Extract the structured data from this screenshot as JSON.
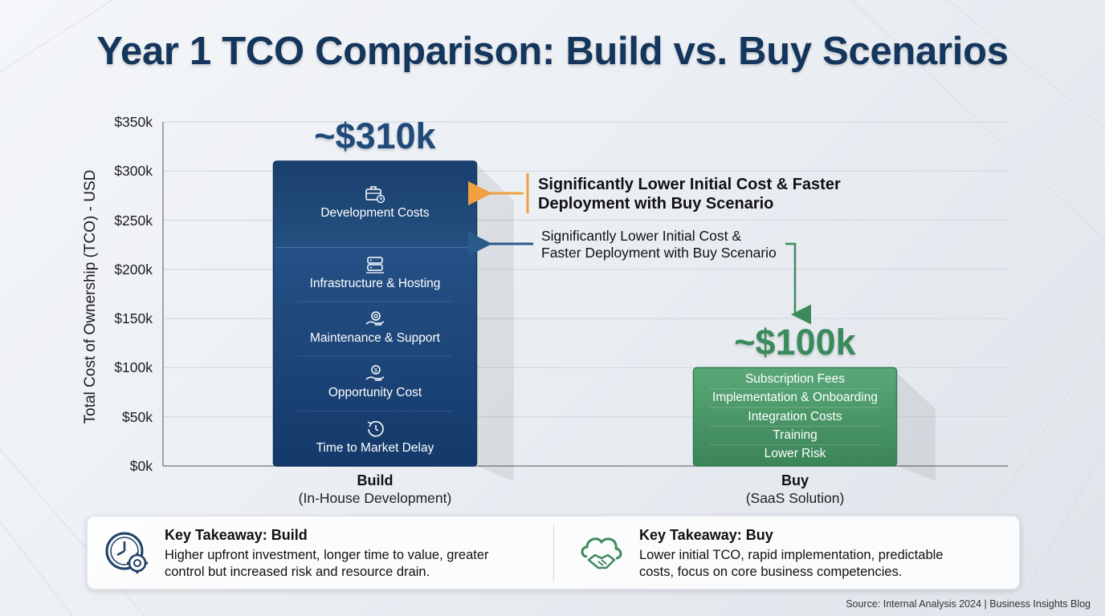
{
  "colors": {
    "title": "#14365c",
    "build_bar": "#1d4677",
    "build_bar_light": "#2f5f95",
    "buy_bar": "#3f8f5f",
    "build_total": "#1f4a7a",
    "buy_total": "#3a8a5c",
    "arrow_orange": "#f0a040",
    "arrow_blue": "#2a5a8c",
    "arrow_green": "#3f8a5c"
  },
  "chart_data": {
    "type": "bar",
    "title": "Year 1 TCO Comparison: Build vs. Buy Scenarios",
    "ylabel": "Total Cost of Ownership (TCO) - USD",
    "ylim": [
      0,
      350000
    ],
    "y_ticks": [
      {
        "value": 0,
        "label": "$0k"
      },
      {
        "value": 50000,
        "label": "$50k"
      },
      {
        "value": 100000,
        "label": "$100k"
      },
      {
        "value": 150000,
        "label": "$150k"
      },
      {
        "value": 200000,
        "label": "$200k"
      },
      {
        "value": 250000,
        "label": "$250k"
      },
      {
        "value": 300000,
        "label": "$300k"
      },
      {
        "value": 350000,
        "label": "$350k"
      }
    ],
    "grid": true,
    "categories": [
      {
        "name": "Build",
        "subtitle": "(In-House Development)",
        "value": 310000,
        "total_label": "~$310k",
        "components": [
          {
            "label": "Development Costs",
            "icon": "briefcase-clock-icon"
          },
          {
            "label": "Infrastructure & Hosting",
            "icon": "server-icon"
          },
          {
            "label": "Maintenance & Support",
            "icon": "gear-hand-icon"
          },
          {
            "label": "Opportunity Cost",
            "icon": "coin-hand-icon"
          },
          {
            "label": "Time to Market Delay",
            "icon": "clock-history-icon"
          }
        ]
      },
      {
        "name": "Buy",
        "subtitle": "(SaaS Solution)",
        "value": 100000,
        "total_label": "~$100k",
        "components": [
          {
            "label": "Subscription Fees"
          },
          {
            "label": "Implementation & Onboarding"
          },
          {
            "label": "Integration Costs"
          },
          {
            "label": "Training"
          },
          {
            "label": "Lower Risk"
          }
        ]
      }
    ],
    "annotations": [
      {
        "text_line1": "Significantly Lower Initial Cost & Faster",
        "text_line2": "Deployment with Buy Scenario"
      },
      {
        "text_line1": "Significantly Lower Initial Cost &",
        "text_line2": "Faster Deployment with Buy Scenario"
      }
    ]
  },
  "takeaways": [
    {
      "title": "Key Takeaway: Build",
      "line1": "Higher upfront investment, longer time to value, greater",
      "line2": "control but increased risk and resource drain.",
      "icon": "clock-gear-icon"
    },
    {
      "title": "Key Takeaway: Buy",
      "line1": "Lower initial TCO, rapid implementation, predictable",
      "line2": "costs, focus on core business competencies.",
      "icon": "cloud-handshake-icon"
    }
  ],
  "source": "Source: Internal Analysis 2024 | Business Insights Blog"
}
